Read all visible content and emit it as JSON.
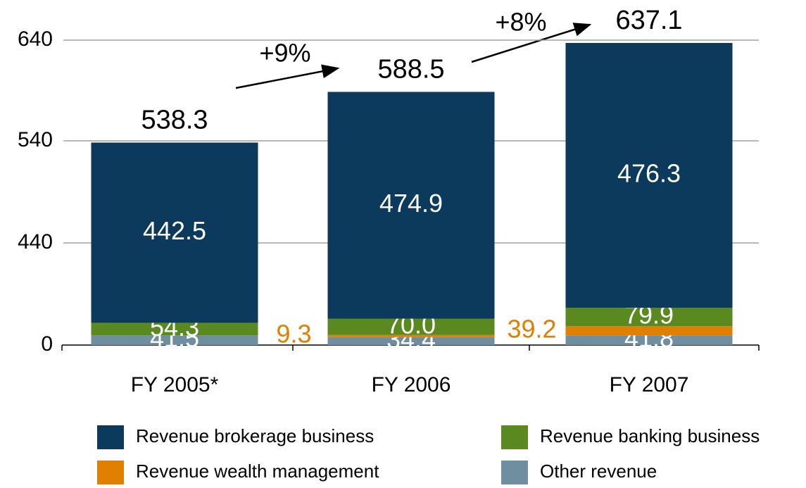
{
  "chart_data": {
    "type": "bar",
    "categories": [
      "FY 2005*",
      "FY 2006",
      "FY 2007"
    ],
    "series": [
      {
        "name": "Revenue brokerage business",
        "color": "#0b3a5c",
        "values": [
          442.5,
          474.9,
          476.3
        ]
      },
      {
        "name": "Revenue banking business",
        "color": "#5a8a1f",
        "values": [
          54.3,
          70.0,
          79.9
        ],
        "value_labels": [
          "54.3",
          "70.0",
          "79.9"
        ]
      },
      {
        "name": "Revenue wealth management",
        "color": "#e07f00",
        "values": [
          null,
          9.3,
          39.2
        ]
      },
      {
        "name": "Other revenue",
        "color": "#6f8ea0",
        "values": [
          41.5,
          34.4,
          41.8
        ]
      }
    ],
    "totals": [
      538.3,
      588.5,
      637.1
    ],
    "annotations": [
      "+9%",
      "+8%"
    ],
    "ylim": [
      0,
      640
    ],
    "yticks": [
      0,
      440,
      540,
      640
    ],
    "grid": true,
    "stacked": true
  }
}
